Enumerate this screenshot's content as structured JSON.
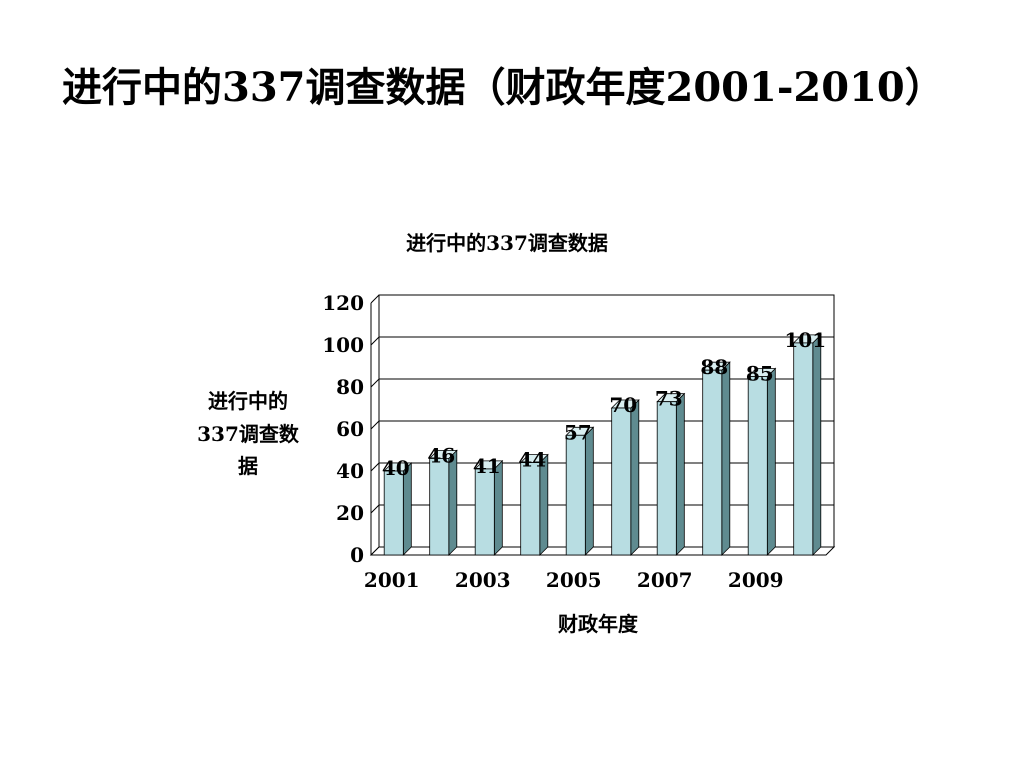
{
  "slide": {
    "title": "进行中的337调查数据（财政年度2001-2010）"
  },
  "chart_data": {
    "type": "bar",
    "title": "进行中的337调查数据",
    "xlabel": "财政年度",
    "ylabel_lines": [
      "进行中的",
      "337调查数",
      "据"
    ],
    "categories": [
      "2001",
      "2002",
      "2003",
      "2004",
      "2005",
      "2006",
      "2007",
      "2008",
      "2009",
      "2010"
    ],
    "x_tick_labels": [
      "2001",
      "",
      "2003",
      "",
      "2005",
      "",
      "2007",
      "",
      "2009",
      ""
    ],
    "values": [
      40,
      46,
      41,
      44,
      57,
      70,
      73,
      88,
      85,
      101
    ],
    "ylim": [
      0,
      120
    ],
    "yticks": [
      0,
      20,
      40,
      60,
      80,
      100,
      120
    ],
    "grid": true,
    "legend": "none",
    "colors": {
      "bar_front": "#b8dde2",
      "bar_side": "#5f8b90",
      "bar_top": "#d9eef0",
      "grid": "#000000"
    }
  }
}
